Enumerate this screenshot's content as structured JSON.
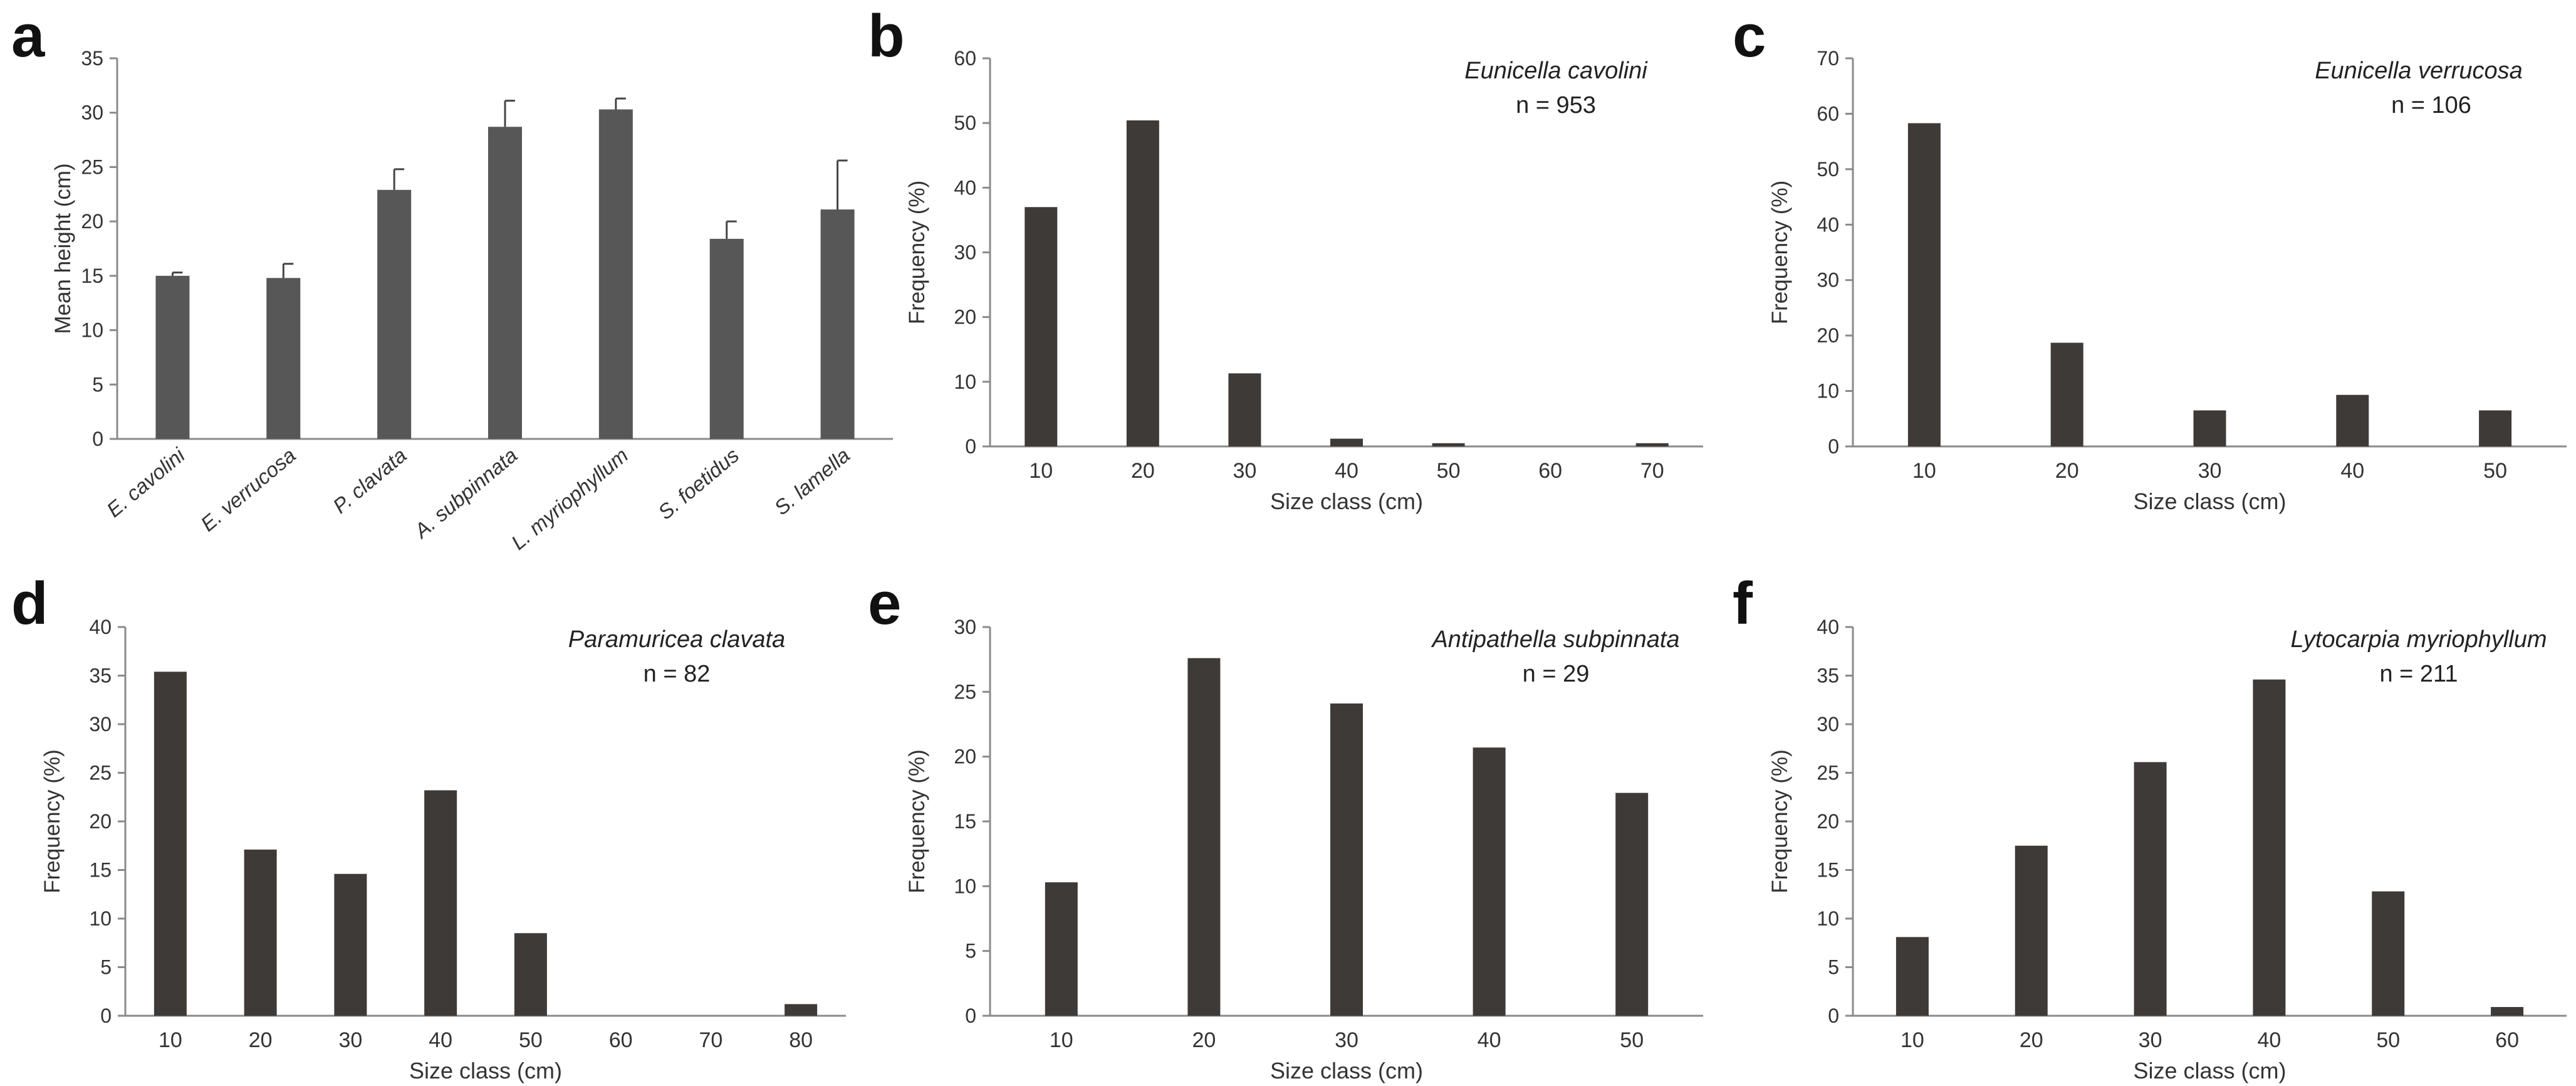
{
  "colors": {
    "bar_a": "#575757",
    "bar_hist": "#3d3a38",
    "axis": "#8a8a8a",
    "text": "#333333",
    "panel_letter": "#111111"
  },
  "chart_data": [
    {
      "id": "a",
      "panel_letter": "a",
      "type": "bar",
      "title": "",
      "categories": [
        "E. cavolini",
        "E. verrucosa",
        "P. clavata",
        "A. subpinnata",
        "L. myriophyllum",
        "S. foetidus",
        "S. lamella"
      ],
      "values": [
        15.0,
        14.8,
        22.9,
        28.7,
        30.3,
        18.4,
        21.1
      ],
      "error_upper": [
        0.3,
        1.3,
        1.9,
        2.4,
        1.0,
        1.6,
        4.5
      ],
      "xlabel": "",
      "ylabel": "Mean height (cm)",
      "ylim": [
        0,
        35
      ],
      "yticks": [
        0,
        5,
        10,
        15,
        20,
        25,
        30,
        35
      ],
      "grid": false,
      "category_labels_italic": true
    },
    {
      "id": "b",
      "panel_letter": "b",
      "type": "bar",
      "species": "Eunicella cavolini",
      "n_label": "n = 953",
      "categories": [
        "10",
        "20",
        "30",
        "40",
        "50",
        "60",
        "70"
      ],
      "values": [
        37.0,
        50.4,
        11.3,
        1.2,
        0.5,
        0,
        0.5
      ],
      "xlabel": "Size class (cm)",
      "ylabel": "Frequency (%)",
      "ylim": [
        0,
        60
      ],
      "yticks": [
        0,
        10,
        20,
        30,
        40,
        50,
        60
      ],
      "grid": false
    },
    {
      "id": "c",
      "panel_letter": "c",
      "type": "bar",
      "species": "Eunicella verrucosa",
      "n_label": "n = 106",
      "categories": [
        "10",
        "20",
        "30",
        "40",
        "50"
      ],
      "values": [
        58.3,
        18.7,
        6.5,
        9.3,
        6.5
      ],
      "xlabel": "Size class (cm)",
      "ylabel": "Frequency (%)",
      "ylim": [
        0,
        70
      ],
      "yticks": [
        0,
        10,
        20,
        30,
        40,
        50,
        60,
        70
      ],
      "grid": false
    },
    {
      "id": "d",
      "panel_letter": "d",
      "type": "bar",
      "species": "Paramuricea clavata",
      "n_label": "n = 82",
      "categories": [
        "10",
        "20",
        "30",
        "40",
        "50",
        "60",
        "70",
        "80"
      ],
      "values": [
        35.4,
        17.1,
        14.6,
        23.2,
        8.5,
        0,
        0,
        1.2
      ],
      "xlabel": "Size class (cm)",
      "ylabel": "Frequency (%)",
      "ylim": [
        0,
        40
      ],
      "yticks": [
        0,
        5,
        10,
        15,
        20,
        25,
        30,
        35,
        40
      ],
      "grid": false
    },
    {
      "id": "e",
      "panel_letter": "e",
      "type": "bar",
      "species": "Antipathella subpinnata",
      "n_label": "n = 29",
      "categories": [
        "10",
        "20",
        "30",
        "40",
        "50"
      ],
      "values": [
        10.3,
        27.6,
        24.1,
        20.7,
        17.2
      ],
      "xlabel": "Size class (cm)",
      "ylabel": "Frequency (%)",
      "ylim": [
        0,
        30
      ],
      "yticks": [
        0,
        5,
        10,
        15,
        20,
        25,
        30
      ],
      "grid": false
    },
    {
      "id": "f",
      "panel_letter": "f",
      "type": "bar",
      "species": "Lytocarpia myriophyllum",
      "n_label": "n = 211",
      "categories": [
        "10",
        "20",
        "30",
        "40",
        "50",
        "60"
      ],
      "values": [
        8.1,
        17.5,
        26.1,
        34.6,
        12.8,
        0.9
      ],
      "xlabel": "Size class (cm)",
      "ylabel": "Frequency (%)",
      "ylim": [
        0,
        40
      ],
      "yticks": [
        0,
        5,
        10,
        15,
        20,
        25,
        30,
        35,
        40
      ],
      "grid": false
    }
  ]
}
